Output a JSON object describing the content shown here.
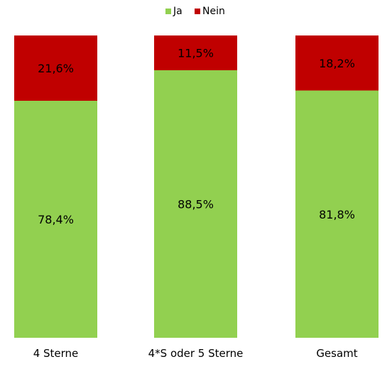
{
  "chart_data": {
    "type": "bar",
    "stacked": true,
    "normalized": true,
    "categories": [
      "4 Sterne",
      "4*S oder 5 Sterne",
      "Gesamt"
    ],
    "series": [
      {
        "name": "Ja",
        "color": "#92d050",
        "values": [
          78.4,
          88.5,
          81.8
        ],
        "labels": [
          "78,4%",
          "88,5%",
          "81,8%"
        ]
      },
      {
        "name": "Nein",
        "color": "#c00000",
        "values": [
          21.6,
          11.5,
          18.2
        ],
        "labels": [
          "21,6%",
          "11,5%",
          "18,2%"
        ]
      }
    ],
    "ylim": [
      0,
      100
    ],
    "grid": false,
    "legend_position": "top-center"
  }
}
